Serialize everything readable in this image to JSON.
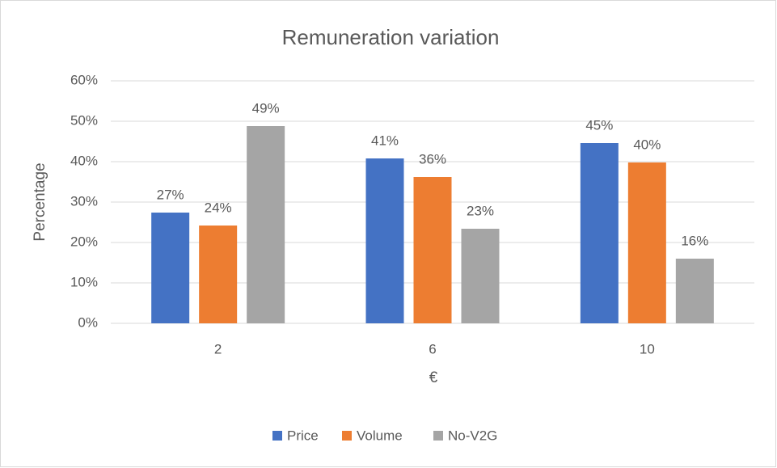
{
  "chart_data": {
    "type": "bar",
    "title": "Remuneration variation",
    "x_label": "€",
    "y_label": "Percentage",
    "categories": [
      "2",
      "6",
      "10"
    ],
    "series": [
      {
        "name": "Price",
        "color": "#4472c4",
        "values": [
          27.4,
          40.8,
          44.6
        ],
        "value_labels": [
          "27%",
          "41%",
          "45%"
        ]
      },
      {
        "name": "Volume",
        "color": "#ed7d31",
        "values": [
          24.2,
          36.2,
          39.8
        ],
        "value_labels": [
          "24%",
          "36%",
          "40%"
        ]
      },
      {
        "name": "No-V2G",
        "color": "#a5a5a5",
        "values": [
          48.8,
          23.4,
          16.0
        ],
        "value_labels": [
          "49%",
          "23%",
          "16%"
        ]
      }
    ],
    "ylim": [
      0,
      60
    ],
    "yticks": [
      {
        "value": 0,
        "label": "0%"
      },
      {
        "value": 10,
        "label": "10%"
      },
      {
        "value": 20,
        "label": "20%"
      },
      {
        "value": 30,
        "label": "30%"
      },
      {
        "value": 40,
        "label": "40%"
      },
      {
        "value": 50,
        "label": "50%"
      },
      {
        "value": 60,
        "label": "60%"
      }
    ],
    "grid": true,
    "legend": "bottom"
  }
}
